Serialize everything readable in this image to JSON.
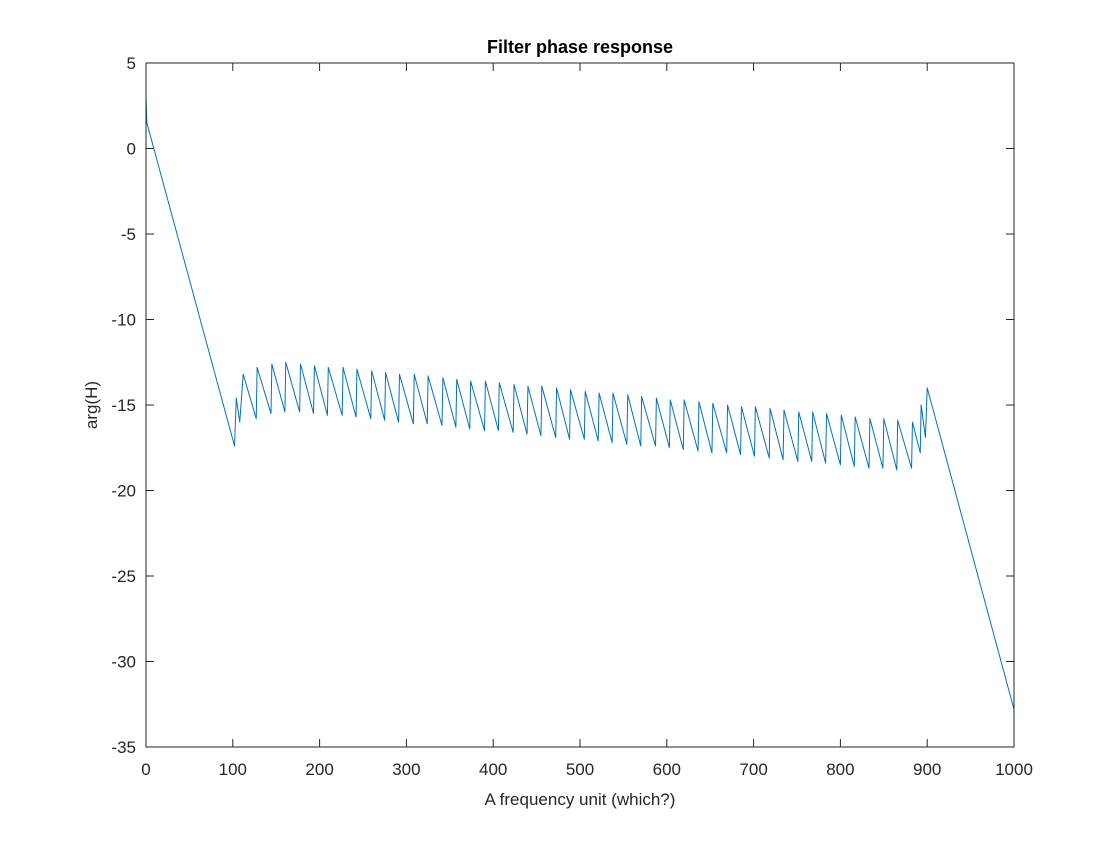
{
  "chart_data": {
    "type": "line",
    "title": "Filter phase response",
    "x_label": "A frequency unit (which?)",
    "y_label": "arg(H)",
    "xlim": [
      0,
      1000
    ],
    "ylim": [
      -35,
      5
    ],
    "xticks": [
      0,
      100,
      200,
      300,
      400,
      500,
      600,
      700,
      800,
      900,
      1000
    ],
    "yticks": [
      -35,
      -30,
      -25,
      -20,
      -15,
      -10,
      -5,
      0,
      5
    ],
    "grid": false,
    "series": [
      {
        "name": null,
        "color": "#0072bd",
        "x": [
          0,
          1,
          102,
          104,
          108,
          112,
          127,
          128,
          144,
          145,
          160,
          161,
          177,
          178,
          193,
          194,
          209,
          210,
          226,
          227,
          242,
          243,
          259,
          260,
          275,
          276,
          291,
          292,
          308,
          309,
          324,
          325,
          341,
          342,
          357,
          358,
          373,
          374,
          390,
          391,
          406,
          407,
          423,
          424,
          439,
          440,
          455,
          456,
          472,
          473,
          488,
          489,
          505,
          506,
          521,
          522,
          537,
          538,
          554,
          555,
          570,
          571,
          587,
          588,
          603,
          604,
          619,
          620,
          636,
          637,
          652,
          653,
          669,
          670,
          685,
          686,
          701,
          702,
          718,
          719,
          734,
          735,
          751,
          752,
          767,
          768,
          783,
          784,
          800,
          801,
          816,
          817,
          833,
          834,
          849,
          850,
          865,
          866,
          882,
          883,
          892,
          893,
          898,
          900,
          1000
        ],
        "values": [
          3.1,
          1.5,
          -17.4,
          -14.6,
          -16.0,
          -13.2,
          -15.8,
          -12.8,
          -15.5,
          -12.6,
          -15.4,
          -12.5,
          -15.4,
          -12.6,
          -15.5,
          -12.7,
          -15.6,
          -12.8,
          -15.6,
          -12.8,
          -15.7,
          -12.9,
          -15.8,
          -13.0,
          -15.9,
          -13.1,
          -16.0,
          -13.2,
          -16.1,
          -13.2,
          -16.1,
          -13.3,
          -16.2,
          -13.4,
          -16.3,
          -13.5,
          -16.4,
          -13.6,
          -16.5,
          -13.6,
          -16.5,
          -13.7,
          -16.6,
          -13.8,
          -16.7,
          -13.9,
          -16.8,
          -13.9,
          -16.9,
          -14.0,
          -17.0,
          -14.1,
          -17.0,
          -14.2,
          -17.1,
          -14.3,
          -17.2,
          -14.3,
          -17.3,
          -14.4,
          -17.4,
          -14.5,
          -17.4,
          -14.6,
          -17.5,
          -14.7,
          -17.6,
          -14.7,
          -17.7,
          -14.8,
          -17.8,
          -14.9,
          -17.8,
          -15.0,
          -17.9,
          -15.1,
          -18.0,
          -15.1,
          -18.1,
          -15.2,
          -18.2,
          -15.3,
          -18.3,
          -15.4,
          -18.3,
          -15.4,
          -18.4,
          -15.5,
          -18.5,
          -15.6,
          -18.6,
          -15.7,
          -18.7,
          -15.8,
          -18.7,
          -15.8,
          -18.8,
          -15.9,
          -18.7,
          -16.0,
          -17.8,
          -15.0,
          -16.9,
          -14.0,
          -32.8
        ]
      }
    ]
  }
}
